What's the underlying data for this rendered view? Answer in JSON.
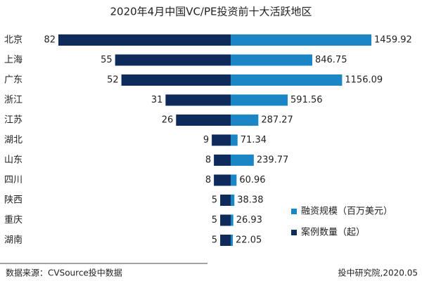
{
  "chart_data": {
    "type": "butterfly",
    "title": "2020年4月中国VC/PE投资前十大活跃地区",
    "categories": [
      "北京",
      "上海",
      "广东",
      "浙江",
      "江苏",
      "湖北",
      "山东",
      "四川",
      "陕西",
      "重庆",
      "湖南"
    ],
    "series": [
      {
        "name": "融资规模（百万美元）",
        "color": "#1b86c5",
        "side": "right",
        "values": [
          1459.92,
          846.75,
          1156.09,
          591.56,
          287.27,
          71.34,
          239.77,
          60.96,
          38.38,
          26.93,
          22.05
        ]
      },
      {
        "name": "案例数量（起）",
        "color": "#0e2b5c",
        "side": "left",
        "values": [
          82,
          55,
          52,
          31,
          26,
          9,
          8,
          8,
          5,
          5,
          5
        ]
      }
    ],
    "source": "数据来源：CVSource投中数据",
    "credit": "投中研究院,2020.05"
  }
}
